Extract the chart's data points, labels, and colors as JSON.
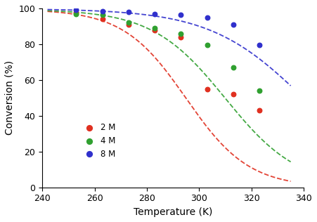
{
  "title": "",
  "xlabel": "Temperature (K)",
  "ylabel": "Conversion (%)",
  "xlim": [
    240,
    340
  ],
  "ylim": [
    0,
    100
  ],
  "xticks": [
    240,
    260,
    280,
    300,
    320,
    340
  ],
  "yticks": [
    0,
    20,
    40,
    60,
    80,
    100
  ],
  "series": [
    {
      "label": "2 M",
      "color": "#e03020",
      "scatter_x": [
        253,
        263,
        273,
        283,
        293,
        303,
        313,
        323
      ],
      "scatter_y": [
        97.5,
        94.0,
        91.0,
        88.0,
        84.0,
        55.0,
        52.0,
        43.0
      ],
      "curve_params": {
        "a": 99.5,
        "b": 295.0,
        "c": 12.0
      }
    },
    {
      "label": "4 M",
      "color": "#30a030",
      "scatter_x": [
        253,
        263,
        273,
        283,
        293,
        303,
        313,
        323
      ],
      "scatter_y": [
        97.0,
        96.5,
        92.0,
        89.0,
        86.0,
        79.5,
        67.0,
        54.0
      ],
      "curve_params": {
        "a": 99.5,
        "b": 310.0,
        "c": 14.0
      }
    },
    {
      "label": "8 M",
      "color": "#3030cc",
      "scatter_x": [
        253,
        263,
        273,
        283,
        293,
        303,
        313,
        323
      ],
      "scatter_y": [
        99.0,
        98.5,
        98.0,
        97.0,
        96.5,
        95.0,
        91.0,
        79.5
      ],
      "curve_params": {
        "a": 99.8,
        "b": 340.0,
        "c": 18.0
      }
    }
  ],
  "curve_x_start": 242,
  "curve_x_end": 335,
  "figsize": [
    4.51,
    3.16
  ],
  "dpi": 100
}
